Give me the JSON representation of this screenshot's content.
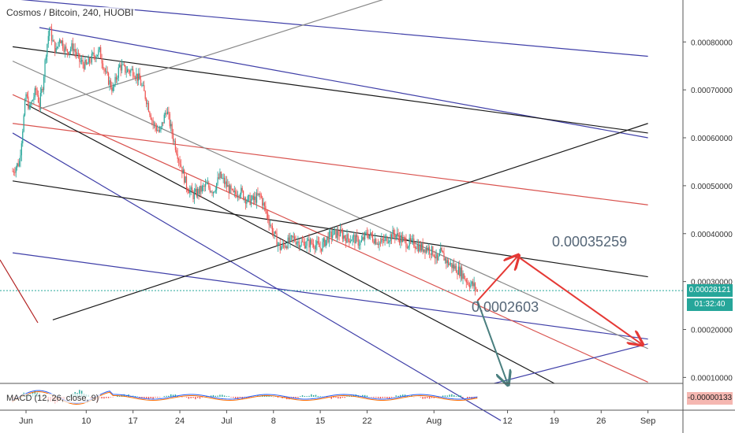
{
  "header": {
    "title": "Cosmos / Bitcoin, 240, HUOBI",
    "macd_label": "MACD (12, 26, close, 9)"
  },
  "price_tags": {
    "last_price": "0.00028121",
    "countdown": "01:32:40",
    "macd_value": "-0.00000133"
  },
  "annotations": {
    "target_high": "0.00035259",
    "target_low": "0.0002603"
  },
  "colors": {
    "up": "#26a69a",
    "down": "#ef5350",
    "last_price": "#26a69a",
    "channel_blue": "#3f3fa8",
    "channel_red": "#d9534f",
    "trend_black": "#1a1a1a",
    "trend_gray": "#888888",
    "projection_red": "#e53935",
    "projection_green": "#4a7f7f",
    "macd_tag": "#f5b7b1"
  },
  "chart_data": {
    "type": "candlestick",
    "title": "Cosmos / Bitcoin, 240, HUOBI",
    "ylim": [
      8.75e-05,
      0.0008875
    ],
    "y_ticks": [
      "0.00080000",
      "0.00070000",
      "0.00060000",
      "0.00050000",
      "0.00040000",
      "0.00030000",
      "0.00020000",
      "0.00010000"
    ],
    "y_tick_values": [
      0.0008,
      0.0007,
      0.0006,
      0.0005,
      0.0004,
      0.0003,
      0.0002,
      0.0001
    ],
    "x_ticks": [
      "Jun",
      "10",
      "17",
      "24",
      "Jul",
      "8",
      "15",
      "22",
      "Aug",
      "12",
      "19",
      "26",
      "Sep"
    ],
    "x_tick_days": [
      1,
      10,
      17,
      24,
      31,
      38,
      45,
      52,
      62,
      73,
      80,
      87,
      94
    ],
    "series": [
      {
        "price_path": [
          [
            -1,
            0.00053
          ],
          [
            0,
            0.00055
          ],
          [
            0.5,
            0.00062
          ],
          [
            1,
            0.00069
          ],
          [
            1.5,
            0.00066
          ],
          [
            2,
            0.00068
          ],
          [
            2.5,
            0.0007
          ],
          [
            3,
            0.00067
          ],
          [
            3.5,
            0.00071
          ],
          [
            4,
            0.00078
          ],
          [
            4.5,
            0.00083
          ],
          [
            5,
            0.0008
          ],
          [
            5.5,
            0.00078
          ],
          [
            6,
            0.00081
          ],
          [
            7,
            0.00078
          ],
          [
            8,
            0.00079
          ],
          [
            9,
            0.00076
          ],
          [
            10,
            0.00075
          ],
          [
            11,
            0.00077
          ],
          [
            12,
            0.00078
          ],
          [
            13,
            0.00073
          ],
          [
            14,
            0.0007
          ],
          [
            15,
            0.00075
          ],
          [
            16,
            0.00074
          ],
          [
            17,
            0.00074
          ],
          [
            18,
            0.00072
          ],
          [
            19,
            0.00068
          ],
          [
            20,
            0.00063
          ],
          [
            21,
            0.00061
          ],
          [
            22,
            0.00066
          ],
          [
            23,
            0.0006
          ],
          [
            24,
            0.00055
          ],
          [
            25,
            0.0005
          ],
          [
            26,
            0.00048
          ],
          [
            27,
            0.00049
          ],
          [
            28,
            0.0005
          ],
          [
            29,
            0.00049
          ],
          [
            30,
            0.00052
          ],
          [
            31,
            0.0005
          ],
          [
            32,
            0.00048
          ],
          [
            33,
            0.00049
          ],
          [
            34,
            0.00047
          ],
          [
            35,
            0.00047
          ],
          [
            36,
            0.00048
          ],
          [
            37,
            0.00044
          ],
          [
            38,
            0.0004
          ],
          [
            39,
            0.00037
          ],
          [
            40,
            0.00038
          ],
          [
            41,
            0.00039
          ],
          [
            42,
            0.00038
          ],
          [
            43,
            0.00038
          ],
          [
            44,
            0.00038
          ],
          [
            45,
            0.00037
          ],
          [
            46,
            0.00039
          ],
          [
            47,
            0.0004
          ],
          [
            48,
            0.0004
          ],
          [
            49,
            0.00039
          ],
          [
            50,
            0.00039
          ],
          [
            51,
            0.00038
          ],
          [
            52,
            0.0004
          ],
          [
            53,
            0.00039
          ],
          [
            54,
            0.00038
          ],
          [
            55,
            0.00039
          ],
          [
            56,
            0.0004
          ],
          [
            57,
            0.00039
          ],
          [
            58,
            0.00038
          ],
          [
            59,
            0.00038
          ],
          [
            60,
            0.00037
          ],
          [
            61,
            0.00037
          ],
          [
            62,
            0.00036
          ],
          [
            62.5,
            0.00034
          ],
          [
            63,
            0.00036
          ],
          [
            64,
            0.00034
          ],
          [
            65,
            0.00033
          ],
          [
            66,
            0.00032
          ],
          [
            67,
            0.0003
          ],
          [
            68,
            0.00029
          ],
          [
            68.5,
            0.00028
          ]
        ]
      }
    ],
    "trend_lines": [
      {
        "color": "blue",
        "points": [
          [
            3,
            0.00083
          ],
          [
            94,
            0.0006
          ]
        ]
      },
      {
        "color": "blue",
        "points": [
          [
            -1,
            0.00061
          ],
          [
            72,
            1e-05
          ]
        ]
      },
      {
        "color": "blue",
        "points": [
          [
            -1,
            0.00089
          ],
          [
            94,
            0.00077
          ]
        ]
      },
      {
        "color": "blue",
        "points": [
          [
            -1,
            0.00036
          ],
          [
            94,
            0.00018
          ]
        ]
      },
      {
        "color": "red",
        "points": [
          [
            -1,
            0.00069
          ],
          [
            94,
            9e-05
          ]
        ]
      },
      {
        "color": "red",
        "points": [
          [
            -1,
            0.00063
          ],
          [
            94,
            0.00046
          ]
        ]
      },
      {
        "color": "gray",
        "points": [
          [
            -1,
            0.00076
          ],
          [
            94,
            0.00016
          ]
        ]
      },
      {
        "color": "black",
        "points": [
          [
            -1,
            0.00079
          ],
          [
            94,
            0.00061
          ]
        ]
      },
      {
        "color": "black",
        "points": [
          [
            -1,
            0.00051
          ],
          [
            94,
            0.00031
          ]
        ]
      },
      {
        "color": "black",
        "points": [
          [
            1,
            0.00067
          ],
          [
            80,
            8.75e-05
          ]
        ]
      },
      {
        "color": "black",
        "points": [
          [
            5,
            0.00022
          ],
          [
            94,
            0.00063
          ]
        ]
      },
      {
        "color": "gray",
        "points": [
          [
            3,
            0.00066
          ],
          [
            57,
            0.0009
          ]
        ]
      },
      {
        "color": "blue",
        "points": [
          [
            71,
            8.75e-05
          ],
          [
            94,
            0.00017
          ]
        ]
      }
    ],
    "projections": [
      {
        "color": "red",
        "points": [
          [
            68.5,
            0.00026
          ],
          [
            74.5,
            0.00035259
          ],
          [
            93,
            0.00017
          ]
        ]
      },
      {
        "color": "green",
        "points": [
          [
            68.5,
            0.00026
          ],
          [
            73,
            8.75e-05
          ]
        ]
      }
    ],
    "last_price": 0.00028121,
    "macd": {
      "label": "MACD (12, 26, close, 9)",
      "value": -1.33e-06
    }
  }
}
